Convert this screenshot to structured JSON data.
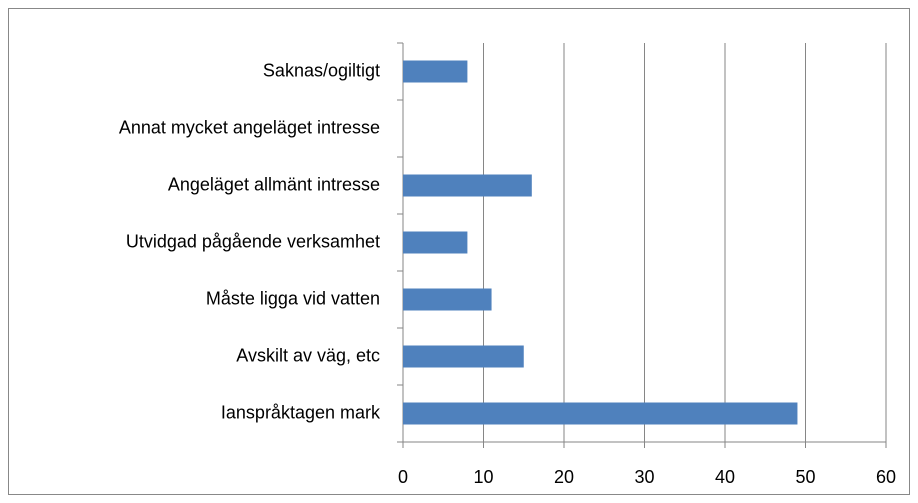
{
  "chart_data": {
    "type": "bar",
    "orientation": "horizontal",
    "categories": [
      "Saknas/ogiltigt",
      "Annat mycket angeläget intresse",
      "Angeläget allmänt intresse",
      "Utvidgad pågående verksamhet",
      "Måste ligga vid vatten",
      "Avskilt av väg, etc",
      "Ianspråktagen mark"
    ],
    "values": [
      8,
      0,
      16,
      8,
      11,
      15,
      49
    ],
    "color": "#4f81bd",
    "xlim": [
      0,
      60
    ],
    "xticks": [
      0,
      10,
      20,
      30,
      40,
      50,
      60
    ],
    "grid": true
  }
}
